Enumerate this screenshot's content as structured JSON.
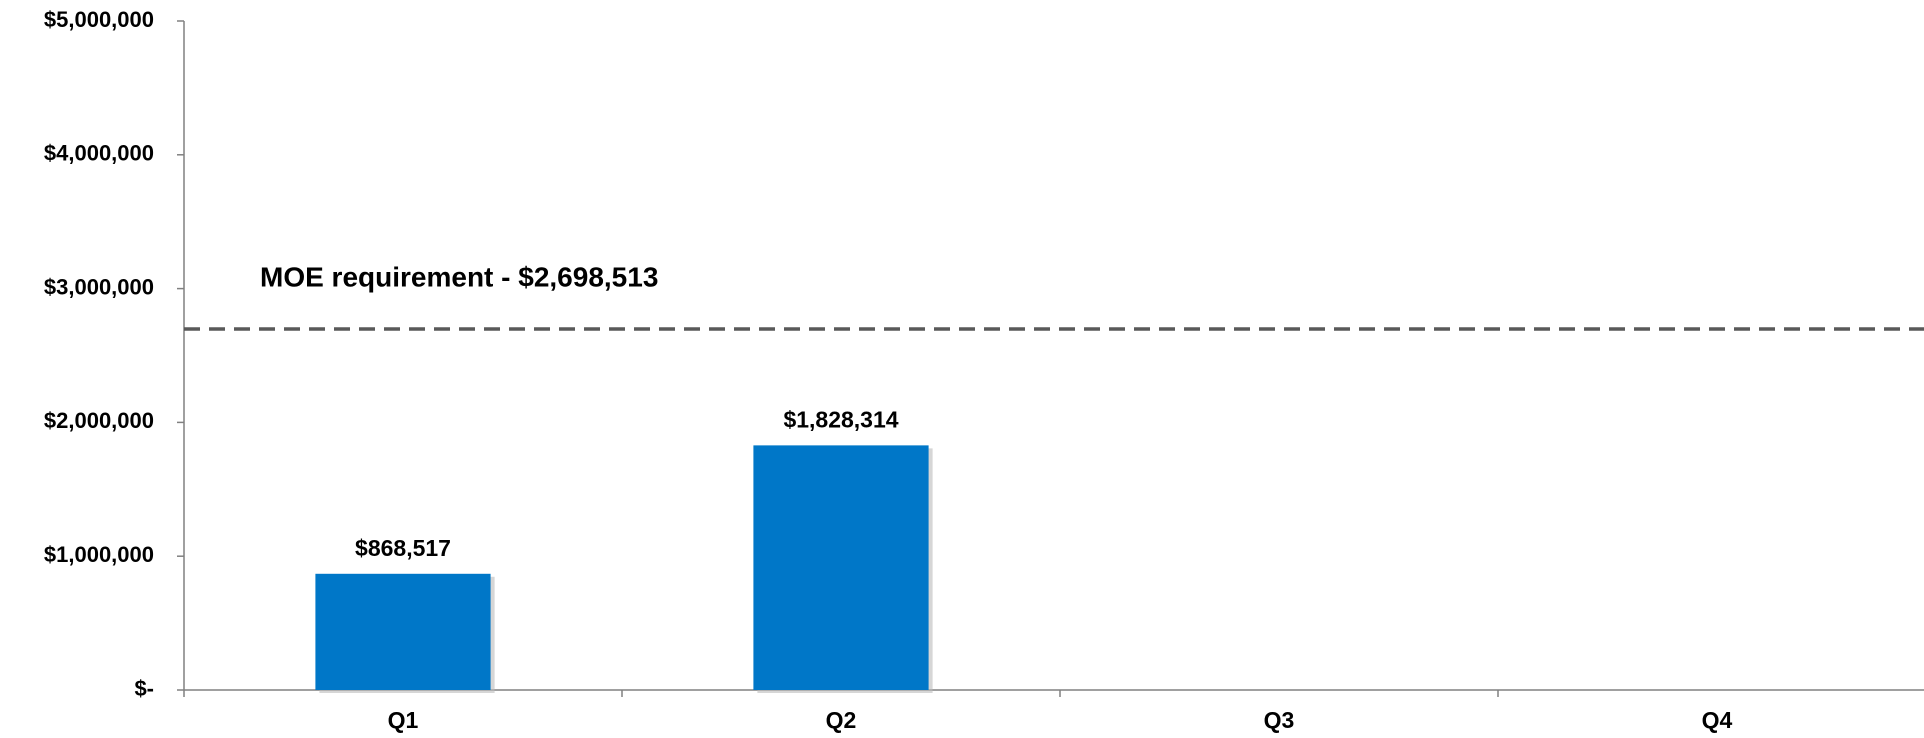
{
  "chart_data": {
    "type": "bar",
    "categories": [
      "Q1",
      "Q2",
      "Q3",
      "Q4"
    ],
    "values": [
      868517,
      1828314,
      null,
      null
    ],
    "value_labels": [
      "$868,517",
      "$1,828,314",
      null,
      null
    ],
    "color": "#0077c8",
    "ylim": [
      0,
      5000000
    ],
    "yticks": [
      {
        "value": 0,
        "label": "$-"
      },
      {
        "value": 1000000,
        "label": "$1,000,000"
      },
      {
        "value": 2000000,
        "label": "$2,000,000"
      },
      {
        "value": 3000000,
        "label": "$3,000,000"
      },
      {
        "value": 4000000,
        "label": "$4,000,000"
      },
      {
        "value": 5000000,
        "label": "$5,000,000"
      }
    ],
    "reference_line": {
      "value": 2698513,
      "label": "MOE requirement - $2,698,513",
      "color": "#595959",
      "dashed": true
    }
  }
}
